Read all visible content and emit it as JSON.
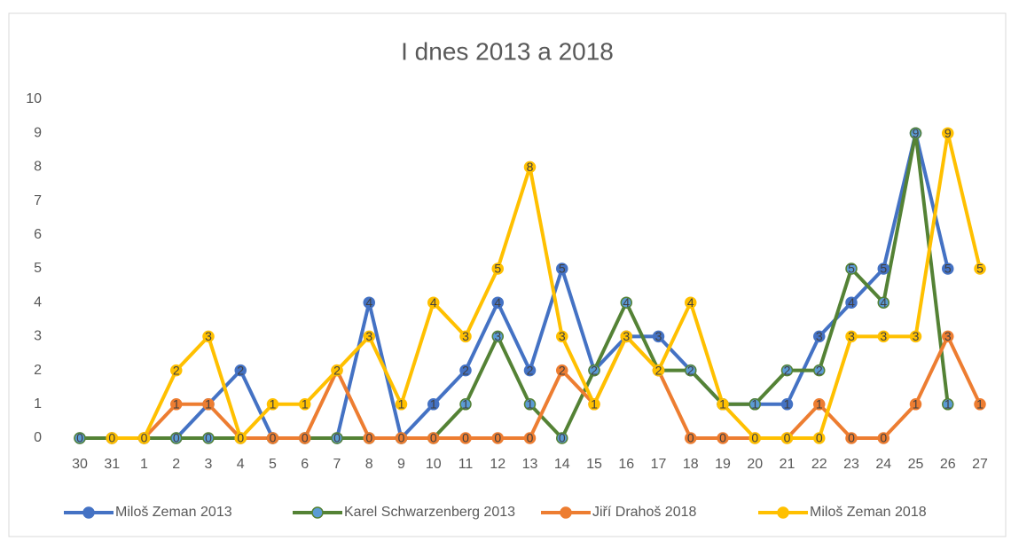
{
  "chart_data": {
    "type": "line",
    "title": "I dnes 2013 a 2018",
    "categories": [
      "30",
      "31",
      "1",
      "2",
      "3",
      "4",
      "5",
      "6",
      "7",
      "8",
      "9",
      "10",
      "11",
      "12",
      "13",
      "14",
      "15",
      "16",
      "17",
      "18",
      "19",
      "20",
      "21",
      "22",
      "23",
      "24",
      "25",
      "26",
      "27"
    ],
    "ylim": [
      0,
      10
    ],
    "yticks": [
      0,
      1,
      2,
      3,
      4,
      5,
      6,
      7,
      8,
      9,
      10
    ],
    "legend": "bottom",
    "series": [
      {
        "name": "Miloš Zeman 2013",
        "color": "#4472c4",
        "marker_fill": "#4472c4",
        "values": [
          0,
          0,
          0,
          0,
          1,
          2,
          0,
          0,
          0,
          4,
          0,
          1,
          2,
          4,
          2,
          5,
          2,
          3,
          3,
          2,
          1,
          1,
          1,
          3,
          4,
          5,
          9,
          5,
          null
        ]
      },
      {
        "name": "Karel Schwarzenberg 2013",
        "color": "#548235",
        "marker_fill": "#5b9bd5",
        "values": [
          0,
          0,
          0,
          0,
          0,
          0,
          0,
          0,
          0,
          0,
          0,
          0,
          1,
          3,
          1,
          0,
          2,
          4,
          2,
          2,
          1,
          1,
          2,
          2,
          5,
          4,
          9,
          1,
          null
        ]
      },
      {
        "name": "Jiří Drahoš 2018",
        "color": "#ed7d31",
        "marker_fill": "#ed7d31",
        "values": [
          null,
          0,
          0,
          1,
          1,
          0,
          0,
          0,
          2,
          0,
          0,
          0,
          0,
          0,
          0,
          2,
          1,
          3,
          2,
          0,
          0,
          0,
          0,
          1,
          0,
          0,
          1,
          3,
          1
        ]
      },
      {
        "name": "Miloš Zeman 2018",
        "color": "#ffc000",
        "marker_fill": "#ffc000",
        "values": [
          null,
          0,
          0,
          2,
          3,
          0,
          1,
          1,
          2,
          3,
          1,
          4,
          3,
          5,
          8,
          3,
          1,
          3,
          2,
          4,
          1,
          0,
          0,
          0,
          3,
          3,
          3,
          9,
          5
        ]
      }
    ]
  }
}
